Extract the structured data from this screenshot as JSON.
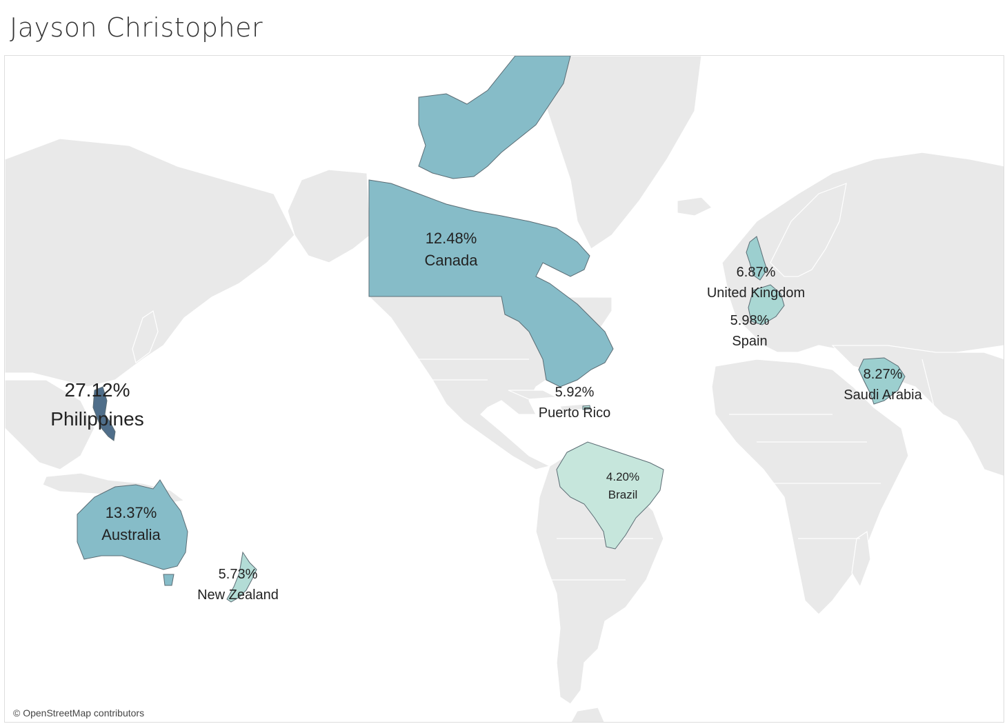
{
  "title": "Jayson Christopher",
  "attribution": "© OpenStreetMap contributors",
  "colors": {
    "land": "#e9e9e9",
    "ocean": "#ffffff",
    "high": "#4f6e8a",
    "mid": "#86bcc8",
    "low": "#9ccfcf",
    "lowest": "#c6e6dc"
  },
  "map_data": {
    "type": "choropleth",
    "regions": [
      {
        "country": "Philippines",
        "share": 27.12,
        "label": "27.12%",
        "color": "#4f6e8a"
      },
      {
        "country": "Australia",
        "share": 13.37,
        "label": "13.37%",
        "color": "#86bcc8"
      },
      {
        "country": "Canada",
        "share": 12.48,
        "label": "12.48%",
        "color": "#86bcc8"
      },
      {
        "country": "Saudi Arabia",
        "share": 8.27,
        "label": "8.27%",
        "color": "#9ccfcf"
      },
      {
        "country": "United Kingdom",
        "share": 6.87,
        "label": "6.87%",
        "color": "#9ccfcf"
      },
      {
        "country": "Spain",
        "share": 5.98,
        "label": "5.98%",
        "color": "#a9d7d3"
      },
      {
        "country": "Puerto Rico",
        "share": 5.92,
        "label": "5.92%",
        "color": "#b3dcd6"
      },
      {
        "country": "New Zealand",
        "share": 5.73,
        "label": "5.73%",
        "color": "#b3dcd6"
      },
      {
        "country": "Brazil",
        "share": 4.2,
        "label": "4.20%",
        "color": "#c6e6dc"
      }
    ]
  }
}
